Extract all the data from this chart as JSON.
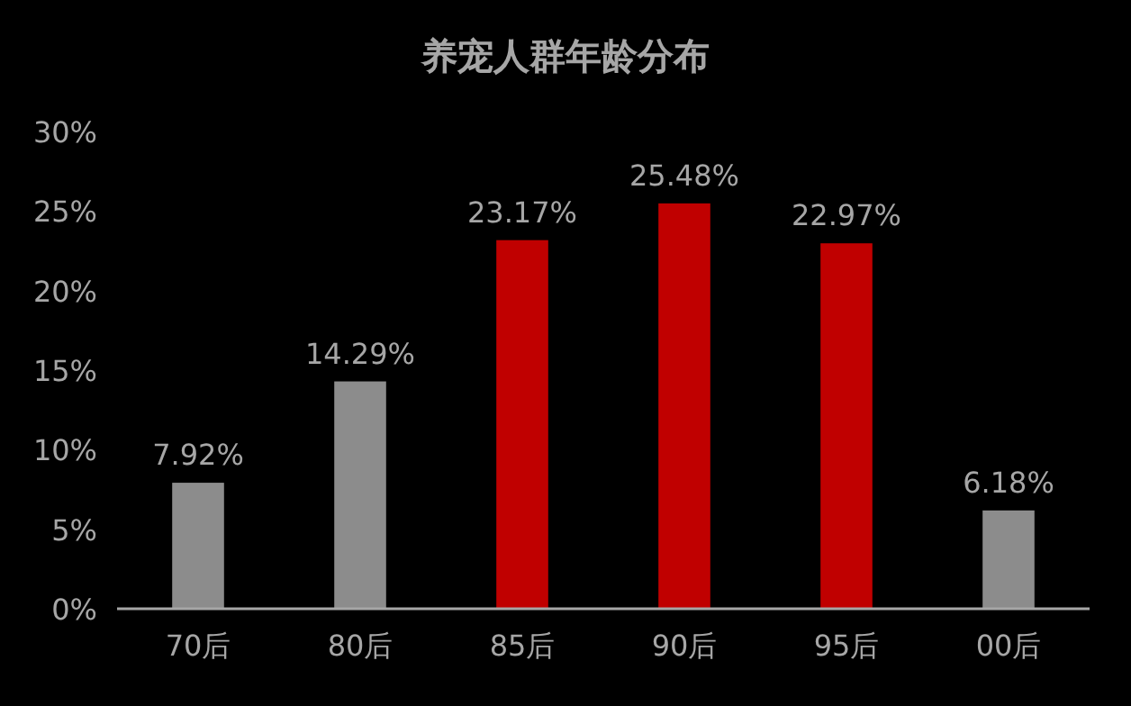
{
  "chart_data": {
    "type": "bar",
    "title": "养宠人群年龄分布",
    "categories": [
      "70后",
      "80后",
      "85后",
      "90后",
      "95后",
      "00后"
    ],
    "values": [
      7.92,
      14.29,
      23.17,
      25.48,
      22.97,
      6.18
    ],
    "colors": [
      "#8c8c8c",
      "#8c8c8c",
      "#c00000",
      "#c00000",
      "#c00000",
      "#8c8c8c"
    ],
    "value_labels": [
      "7.92%",
      "14.29%",
      "23.17%",
      "25.48%",
      "22.97%",
      "6.18%"
    ],
    "ylim": [
      0,
      30
    ],
    "yticks": [
      {
        "value": 0,
        "label": "0%"
      },
      {
        "value": 5,
        "label": "5%"
      },
      {
        "value": 10,
        "label": "10%"
      },
      {
        "value": 15,
        "label": "15%"
      },
      {
        "value": 20,
        "label": "20%"
      },
      {
        "value": 25,
        "label": "25%"
      },
      {
        "value": 30,
        "label": "30%"
      }
    ]
  }
}
